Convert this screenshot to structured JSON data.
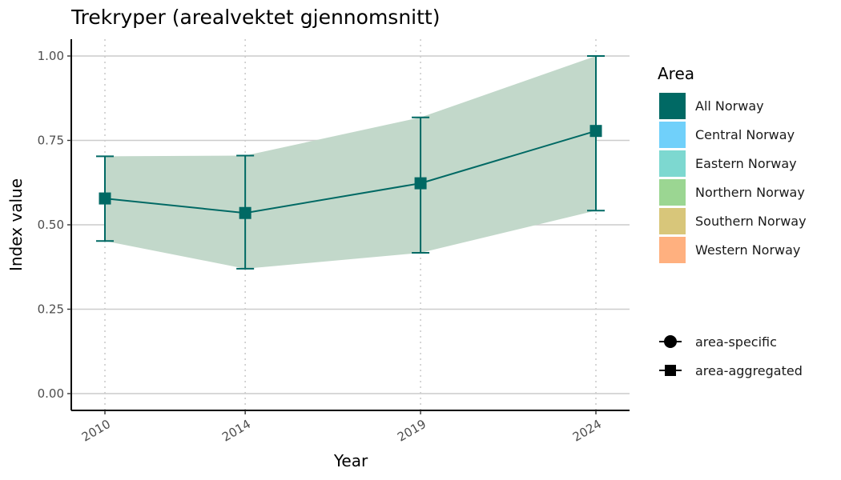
{
  "chart_data": {
    "type": "line",
    "title": "Trekryper (arealvektet gjennomsnitt)",
    "xlabel": "Year",
    "ylabel": "Index value",
    "ylim": [
      0,
      1
    ],
    "xlim": [
      2009.2,
      2024.8
    ],
    "yticks": [
      0.0,
      0.25,
      0.5,
      0.75,
      1.0
    ],
    "ytick_labels": [
      "0.00",
      "0.25",
      "0.50",
      "0.75",
      "1.00"
    ],
    "xticks": [
      2010,
      2014,
      2019,
      2024
    ],
    "xtick_labels": [
      "2010",
      "2014",
      "2019",
      "2024"
    ],
    "grid": true,
    "legend_position": "right",
    "series": [
      {
        "name": "All Norway",
        "marker": "square",
        "x": [
          2010,
          2014,
          2019,
          2024
        ],
        "values": [
          0.578,
          0.535,
          0.623,
          0.778
        ],
        "err_low": [
          0.452,
          0.37,
          0.417,
          0.542
        ],
        "err_high": [
          0.703,
          0.705,
          0.818,
          1.0
        ],
        "band_low": [
          0.452,
          0.37,
          0.417,
          0.542
        ],
        "band_high": [
          0.703,
          0.705,
          0.818,
          1.0
        ]
      }
    ],
    "legend": {
      "area_title": "Area",
      "areas": [
        {
          "label": "All Norway",
          "color": "#006964"
        },
        {
          "label": "Central Norway",
          "color": "#70d0fa"
        },
        {
          "label": "Eastern Norway",
          "color": "#7dd8d0"
        },
        {
          "label": "Northern Norway",
          "color": "#9bd692"
        },
        {
          "label": "Southern Norway",
          "color": "#d8c67a"
        },
        {
          "label": "Western Norway",
          "color": "#ffb07f"
        }
      ],
      "shapes": [
        {
          "label": "area-specific",
          "shape": "circle"
        },
        {
          "label": "area-aggregated",
          "shape": "square"
        }
      ]
    },
    "colors": {
      "line": "#006964",
      "band": "#c2d8ca",
      "grid": "#cccccc",
      "vgrid": "#cccccc",
      "axis": "#000000"
    }
  }
}
